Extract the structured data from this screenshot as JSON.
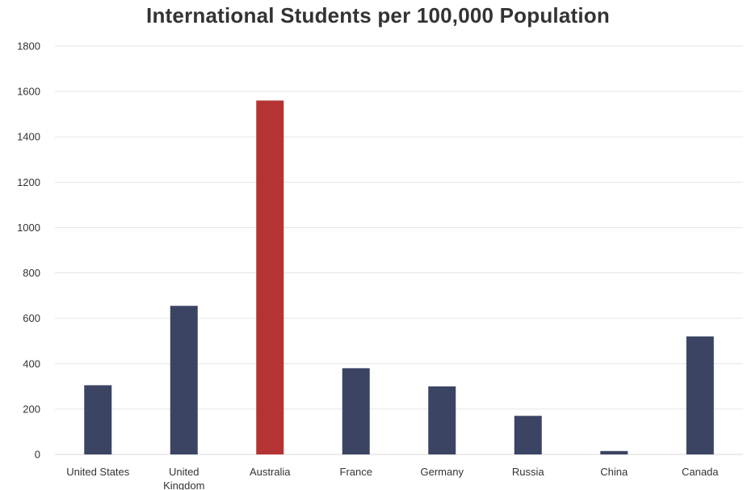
{
  "chart_data": {
    "type": "bar",
    "title": "International Students per 100,000 Population",
    "categories": [
      "United States",
      "United Kingdom",
      "Australia",
      "France",
      "Germany",
      "Russia",
      "China",
      "Canada"
    ],
    "category_display": [
      "United States",
      "United Kingdom",
      "Australia",
      "France",
      "Germany",
      "Russia",
      "China",
      "Canada"
    ],
    "values": [
      305,
      655,
      1560,
      380,
      300,
      170,
      15,
      520
    ],
    "ylim": [
      0,
      1800
    ],
    "yticks": [
      0,
      200,
      400,
      600,
      800,
      1000,
      1200,
      1400,
      1600,
      1800
    ],
    "xlabel": "",
    "ylabel": "",
    "grid": true,
    "legend": "none",
    "colors": {
      "default": "#3b4463",
      "highlight": "#b53333",
      "grid": "#e6e6e6"
    },
    "highlight_index": 2
  }
}
